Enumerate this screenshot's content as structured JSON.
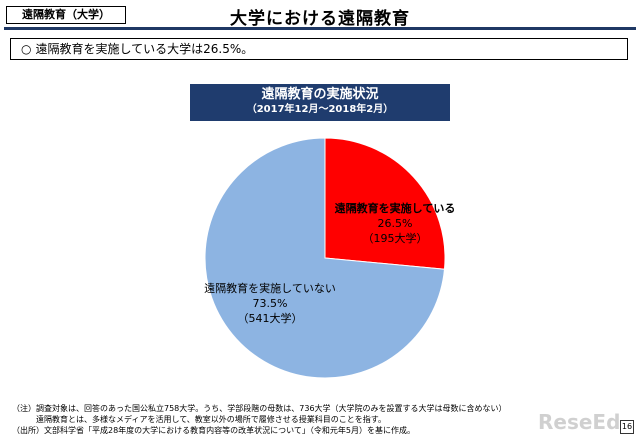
{
  "header": {
    "tag": "遠隔教育（大学）",
    "title": "大学における遠隔教育"
  },
  "summary": {
    "bullet": "○",
    "text": "遠隔教育を実施している大学は26.5%。"
  },
  "chart_head": {
    "line1": "遠隔教育の実施状況",
    "line2": "（2017年12月～2018年2月）"
  },
  "chart_data": {
    "type": "pie",
    "slices": [
      {
        "label": "遠隔教育を実施している",
        "percent_label": "26.5%",
        "count_label": "（195大学）",
        "value": 195,
        "percent": 26.5,
        "color": "#ff0000"
      },
      {
        "label": "遠隔教育を実施していない",
        "percent_label": "73.5%",
        "count_label": "（541大学）",
        "value": 541,
        "percent": 73.5,
        "color": "#8db4e2"
      }
    ]
  },
  "notes": {
    "line1": "（注）調査対象は、回答のあった国公私立758大学。うち、学部段階の母数は、736大学（大学院のみを設置する大学は母数に含めない）",
    "line2": "遠隔教育とは、多様なメディアを活用して、教室以外の場所で履修させる授業科目のことを指す。",
    "line3": "（出所）文部科学省「平成28年度の大学における教育内容等の改革状況について」（令和元年5月）を基に作成。"
  },
  "footer": {
    "logo": "ReseEd",
    "page": "16"
  }
}
